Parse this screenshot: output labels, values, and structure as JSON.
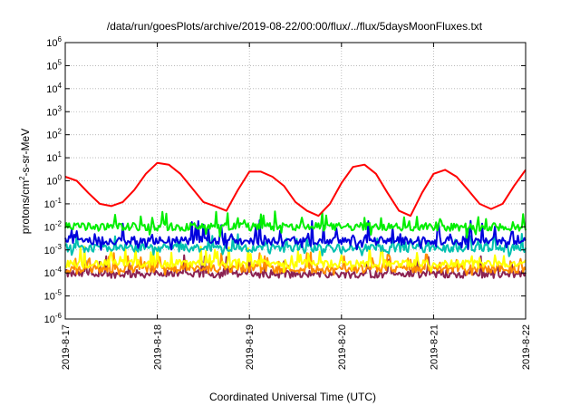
{
  "chart_data": {
    "type": "line",
    "title": "/data/run/goesPlots/archive/2019-08-22/00:00/flux/../flux/5daysMoonFluxes.txt",
    "xlabel": "Coordinated Universal Time (UTC)",
    "ylabel": "protons/cm²-s-sr-MeV",
    "ylabel_parts": {
      "before": "protons/cm",
      "sup": "2",
      "after": "-s-sr-MeV"
    },
    "y_scale": "log",
    "ylim": [
      1e-06,
      1000000.0
    ],
    "y_ticks": [
      {
        "base": "10",
        "exp": "-6",
        "value": -6
      },
      {
        "base": "10",
        "exp": "-5",
        "value": -5
      },
      {
        "base": "10",
        "exp": "-4",
        "value": -4
      },
      {
        "base": "10",
        "exp": "-3",
        "value": -3
      },
      {
        "base": "10",
        "exp": "-2",
        "value": -2
      },
      {
        "base": "10",
        "exp": "-1",
        "value": -1
      },
      {
        "base": "10",
        "exp": "0",
        "value": 0
      },
      {
        "base": "10",
        "exp": "1",
        "value": 1
      },
      {
        "base": "10",
        "exp": "2",
        "value": 2
      },
      {
        "base": "10",
        "exp": "3",
        "value": 3
      },
      {
        "base": "10",
        "exp": "4",
        "value": 4
      },
      {
        "base": "10",
        "exp": "5",
        "value": 5
      },
      {
        "base": "10",
        "exp": "6",
        "value": 6
      }
    ],
    "xlim": [
      "2019-08-17",
      "2019-08-22"
    ],
    "x_ticks": [
      "2019-8-17",
      "2019-8-18",
      "2019-8-19",
      "2019-8-20",
      "2019-8-21",
      "2019-8-22"
    ],
    "grid": true,
    "series": [
      {
        "color": "#ff0000",
        "x": [
          "2019-08-17 00:00",
          "2019-08-17 03:00",
          "2019-08-17 06:00",
          "2019-08-17 09:00",
          "2019-08-17 12:00",
          "2019-08-17 15:00",
          "2019-08-17 18:00",
          "2019-08-17 21:00",
          "2019-08-18 00:00",
          "2019-08-18 03:00",
          "2019-08-18 06:00",
          "2019-08-18 09:00",
          "2019-08-18 12:00",
          "2019-08-18 15:00",
          "2019-08-18 18:00",
          "2019-08-18 21:00",
          "2019-08-19 00:00",
          "2019-08-19 03:00",
          "2019-08-19 06:00",
          "2019-08-19 09:00",
          "2019-08-19 12:00",
          "2019-08-19 15:00",
          "2019-08-19 18:00",
          "2019-08-19 21:00",
          "2019-08-20 00:00",
          "2019-08-20 03:00",
          "2019-08-20 06:00",
          "2019-08-20 09:00",
          "2019-08-20 12:00",
          "2019-08-20 15:00",
          "2019-08-20 18:00",
          "2019-08-20 21:00",
          "2019-08-21 00:00",
          "2019-08-21 03:00",
          "2019-08-21 06:00",
          "2019-08-21 09:00",
          "2019-08-21 12:00",
          "2019-08-21 15:00",
          "2019-08-21 18:00",
          "2019-08-21 21:00",
          "2019-08-22 00:00"
        ],
        "y": [
          1.5,
          1.0,
          0.3,
          0.1,
          0.08,
          0.12,
          0.4,
          2.0,
          6.0,
          5.0,
          2.0,
          0.5,
          0.12,
          0.08,
          0.05,
          0.4,
          2.5,
          2.5,
          1.5,
          0.6,
          0.12,
          0.05,
          0.03,
          0.1,
          0.8,
          4.0,
          5.0,
          2.0,
          0.3,
          0.05,
          0.03,
          0.3,
          2.0,
          3.0,
          1.5,
          0.4,
          0.1,
          0.06,
          0.1,
          0.6,
          3.0
        ]
      },
      {
        "color": "#00ee00",
        "x_range": [
          "2019-08-17",
          "2019-08-22"
        ],
        "y_range": [
          0.003,
          0.05
        ],
        "y_typical": 0.01
      },
      {
        "color": "#0000dd",
        "x_range": [
          "2019-08-17",
          "2019-08-22"
        ],
        "y_range": [
          0.001,
          0.02
        ],
        "y_typical": 0.0025
      },
      {
        "color": "#00c0b0",
        "x_range": [
          "2019-08-17",
          "2019-08-22"
        ],
        "y_range": [
          0.0005,
          0.005
        ],
        "y_typical": 0.0012
      },
      {
        "color": "#ffff00",
        "x_range": [
          "2019-08-17",
          "2019-08-22"
        ],
        "y_range": [
          0.0001,
          0.0015
        ],
        "y_typical": 0.00025
      },
      {
        "color": "#ff8c00",
        "x_range": [
          "2019-08-17",
          "2019-08-22"
        ],
        "y_range": [
          8e-05,
          0.0008
        ],
        "y_typical": 0.00015
      },
      {
        "color": "#8b2252",
        "x_range": [
          "2019-08-17",
          "2019-08-22"
        ],
        "y_range": [
          6e-05,
          0.0006
        ],
        "y_typical": 9e-05
      }
    ]
  }
}
